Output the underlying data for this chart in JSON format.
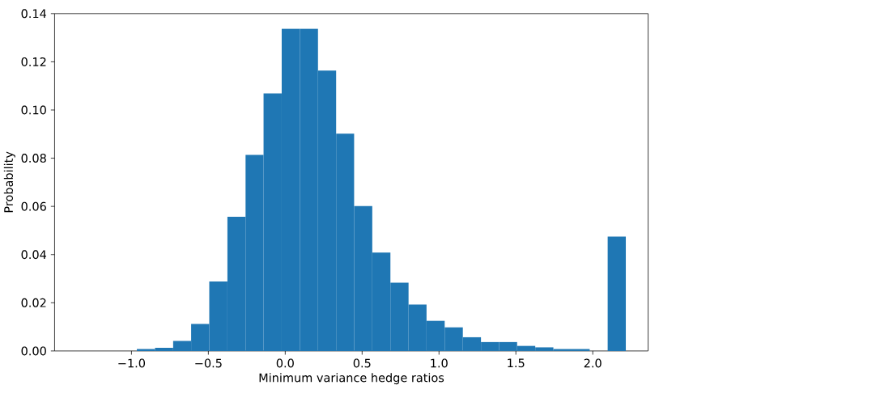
{
  "chart_data": {
    "type": "histogram",
    "xlabel": "Minimum variance hedge ratios",
    "ylabel": "Probability",
    "bins": [
      -0.965,
      -0.847,
      -0.729,
      -0.612,
      -0.494,
      -0.376,
      -0.258,
      -0.141,
      -0.023,
      0.095,
      0.213,
      0.331,
      0.448,
      0.566,
      0.684,
      0.802,
      0.919,
      1.037,
      1.155,
      1.273,
      1.391,
      1.508,
      1.626,
      1.744,
      1.862,
      1.98,
      2.097,
      2.215
    ],
    "values": [
      0.0008,
      0.0013,
      0.0042,
      0.0112,
      0.0288,
      0.0557,
      0.0814,
      0.1069,
      0.1337,
      0.1337,
      0.1164,
      0.0902,
      0.0601,
      0.0408,
      0.0283,
      0.0193,
      0.0125,
      0.0098,
      0.0057,
      0.0037,
      0.0037,
      0.0021,
      0.0015,
      0.0008,
      0.0008,
      0,
      0.0475
    ],
    "color": "#1f77b4",
    "xlim": [
      -1.5,
      2.36
    ],
    "ylim": [
      0,
      0.14
    ],
    "xticks": [
      {
        "value": -1.0,
        "label": "−1.0"
      },
      {
        "value": -0.5,
        "label": "−0.5"
      },
      {
        "value": 0.0,
        "label": "0.0"
      },
      {
        "value": 0.5,
        "label": "0.5"
      },
      {
        "value": 1.0,
        "label": "1.0"
      },
      {
        "value": 1.5,
        "label": "1.5"
      },
      {
        "value": 2.0,
        "label": "2.0"
      }
    ],
    "yticks": [
      {
        "value": 0,
        "label": "0.00"
      },
      {
        "value": 0.02,
        "label": "0.02"
      },
      {
        "value": 0.04,
        "label": "0.04"
      },
      {
        "value": 0.06,
        "label": "0.06"
      },
      {
        "value": 0.08,
        "label": "0.08"
      },
      {
        "value": 0.1,
        "label": "0.10"
      },
      {
        "value": 0.12,
        "label": "0.12"
      },
      {
        "value": 0.14,
        "label": "0.14"
      }
    ]
  }
}
